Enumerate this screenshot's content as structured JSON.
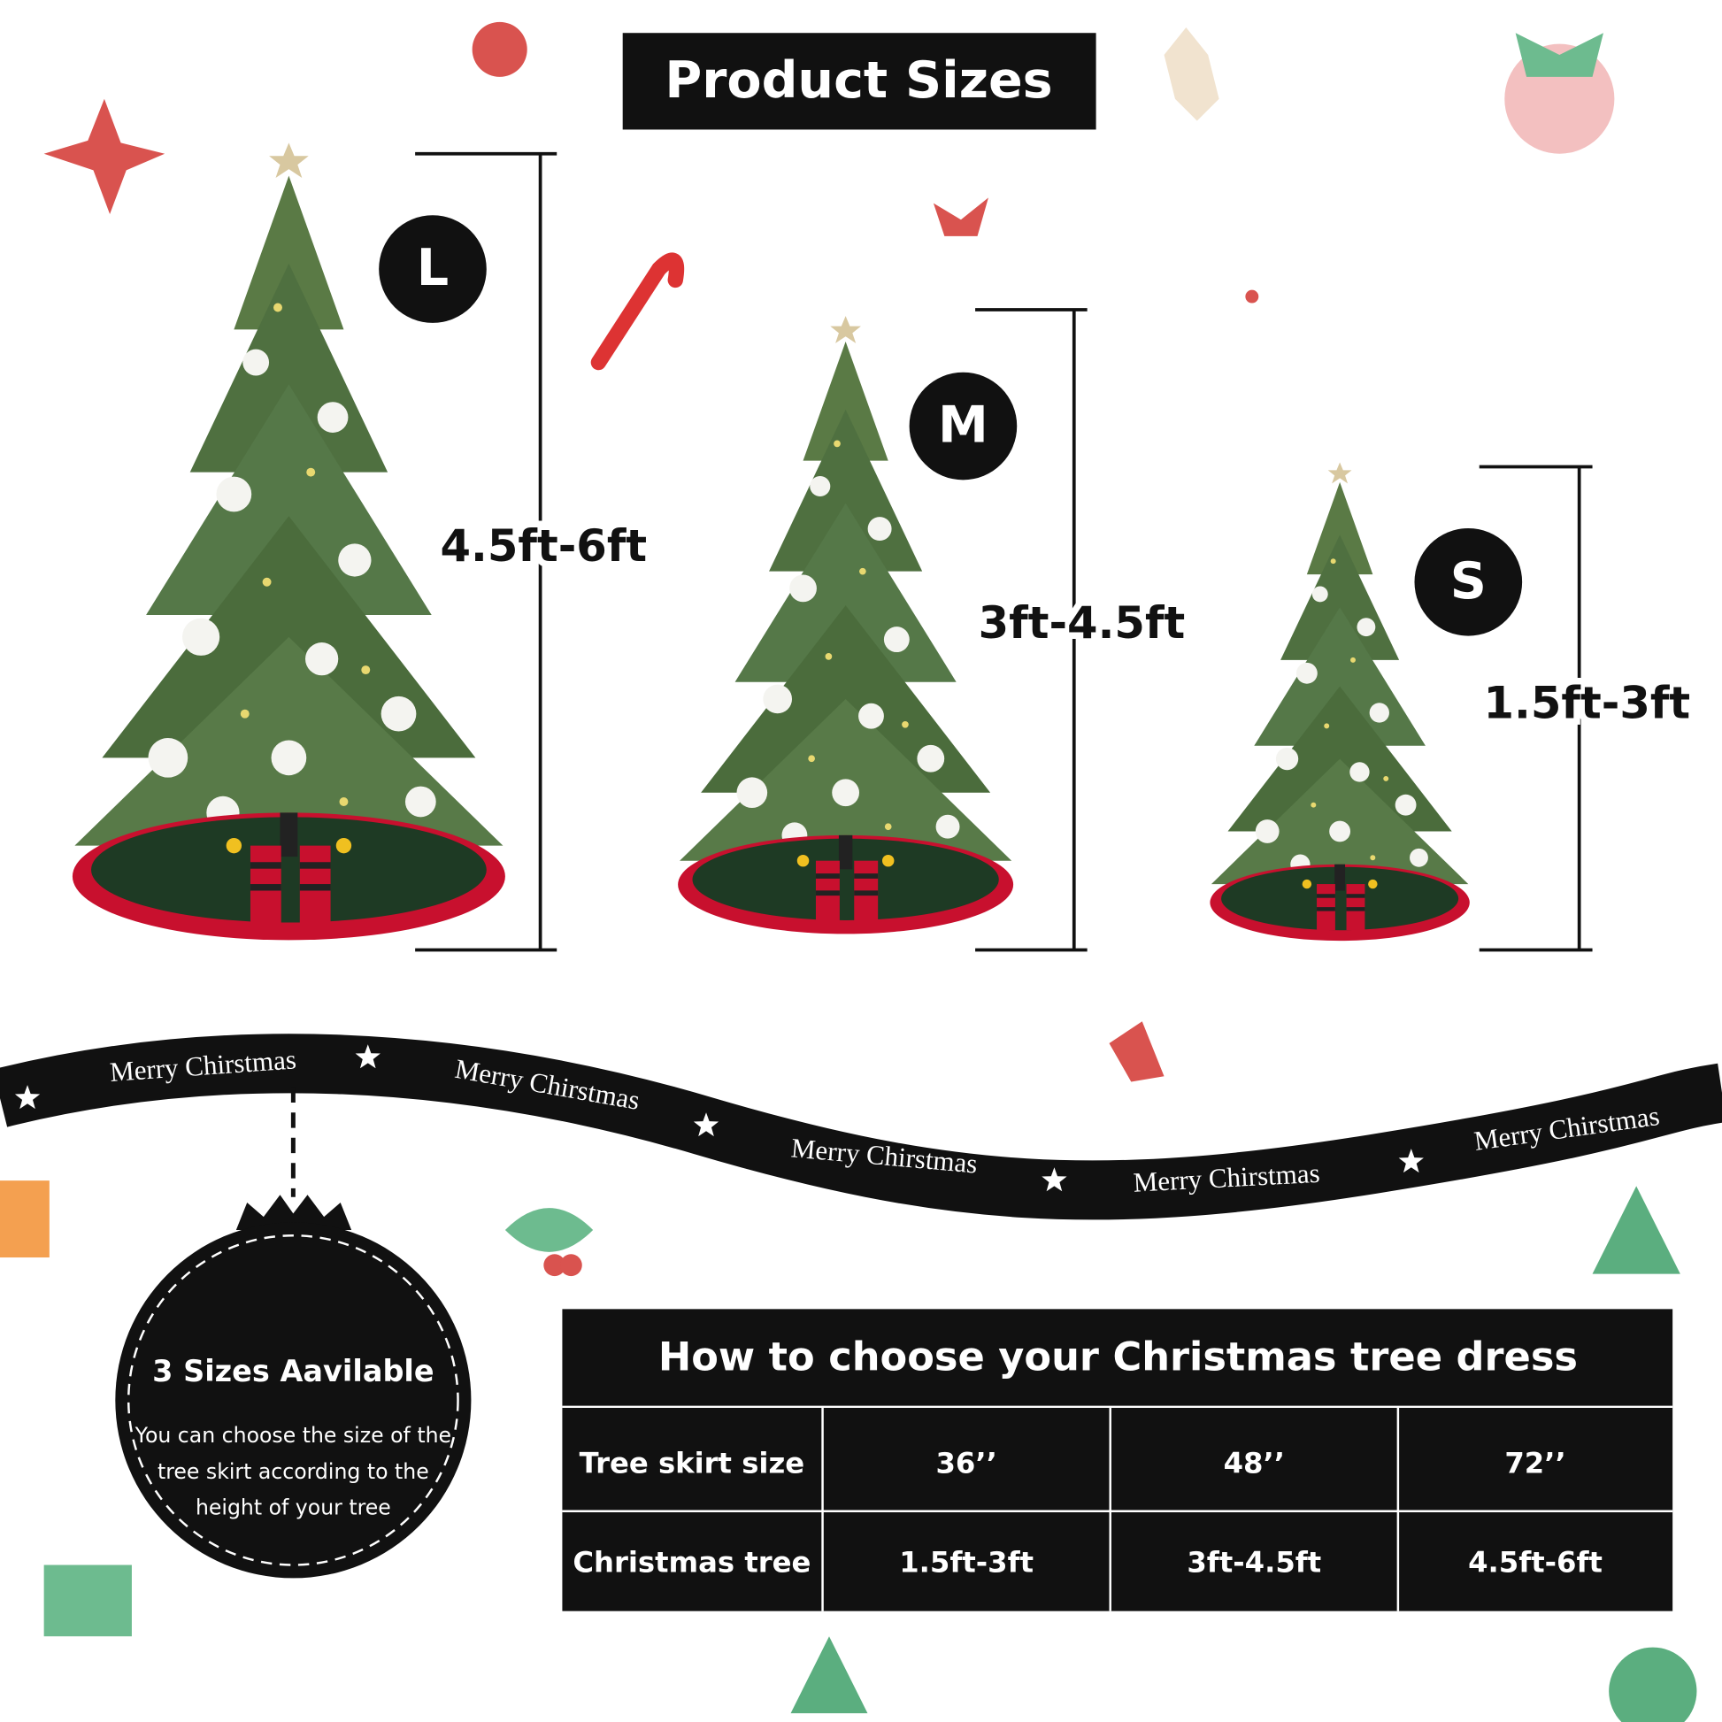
{
  "header": {
    "title": "Product Sizes"
  },
  "sizes": [
    {
      "badge": "L",
      "height": "4.5ft-6ft"
    },
    {
      "badge": "M",
      "height": "3ft-4.5ft"
    },
    {
      "badge": "S",
      "height": "1.5ft-3ft"
    }
  ],
  "ribbon": {
    "text": "Merry Chirstmas"
  },
  "ornament": {
    "title": "3 Sizes Aavilable",
    "lines": [
      "You can choose the size of the",
      "tree skirt according to the",
      "height of your tree"
    ]
  },
  "table": {
    "title": "How to choose your Christmas tree dress",
    "rows": [
      [
        "Tree skirt size",
        "36’’",
        "48’’",
        "72’’"
      ],
      [
        "Christmas tree",
        "1.5ft-3ft",
        "3ft-4.5ft",
        "4.5ft-6ft"
      ]
    ]
  }
}
